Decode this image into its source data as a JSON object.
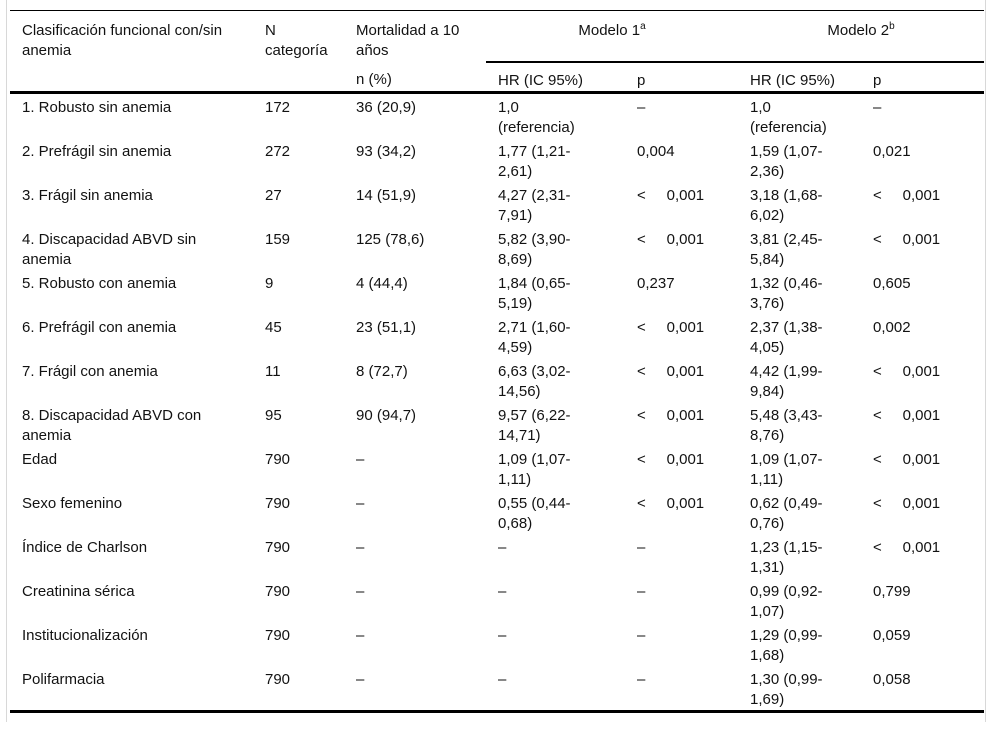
{
  "table": {
    "header": {
      "classification": "Clasificación funcional con/sin\nanemia",
      "n_category": "N\ncategoría",
      "mortality": "Mortalidad a 10\naños",
      "n_pct": "n (%)",
      "model1": {
        "label": "Modelo 1",
        "sup": "a"
      },
      "model2": {
        "label": "Modelo 2",
        "sup": "b"
      },
      "hr_label": "HR (IC 95%)",
      "p_label": "p"
    },
    "rows": [
      {
        "label": "1. Robusto sin anemia",
        "n": "172",
        "mortality": "36 (20,9)",
        "hr1": "1,0\n(referencia)",
        "p1": "–",
        "hr2": "1,0\n(referencia)",
        "p2": "–"
      },
      {
        "label": "2. Prefrágil sin anemia",
        "n": "272",
        "mortality": "93 (34,2)",
        "hr1": "1,77 (1,21-\n2,61)",
        "p1": "0,004",
        "hr2": "1,59 (1,07-\n2,36)",
        "p2": "0,021"
      },
      {
        "label": "3. Frágil sin anemia",
        "n": "27",
        "mortality": "14 (51,9)",
        "hr1": "4,27 (2,31-\n7,91)",
        "p1": "<     0,001",
        "hr2": "3,18 (1,68-\n6,02)",
        "p2": "<     0,001"
      },
      {
        "label": "4. Discapacidad ABVD sin\nanemia",
        "n": "159",
        "mortality": "125 (78,6)",
        "hr1": "5,82 (3,90-\n8,69)",
        "p1": "<     0,001",
        "hr2": "3,81 (2,45-\n5,84)",
        "p2": "<     0,001"
      },
      {
        "label": "5. Robusto con anemia",
        "n": "9",
        "mortality": "4 (44,4)",
        "hr1": "1,84 (0,65-\n5,19)",
        "p1": "0,237",
        "hr2": "1,32 (0,46-\n3,76)",
        "p2": "0,605"
      },
      {
        "label": "6. Prefrágil con anemia",
        "n": "45",
        "mortality": "23 (51,1)",
        "hr1": "2,71 (1,60-\n4,59)",
        "p1": "<     0,001",
        "hr2": "2,37 (1,38-\n4,05)",
        "p2": "0,002"
      },
      {
        "label": "7. Frágil con anemia",
        "n": "11",
        "mortality": "8 (72,7)",
        "hr1": "6,63 (3,02-\n14,56)",
        "p1": "<     0,001",
        "hr2": "4,42 (1,99-\n9,84)",
        "p2": "<     0,001"
      },
      {
        "label": "8. Discapacidad ABVD con\nanemia",
        "n": "95",
        "mortality": "90 (94,7)",
        "hr1": "9,57 (6,22-\n14,71)",
        "p1": "<     0,001",
        "hr2": "5,48 (3,43-\n8,76)",
        "p2": "<     0,001"
      },
      {
        "label": "Edad",
        "n": "790",
        "mortality": "–",
        "hr1": "1,09 (1,07-\n1,11)",
        "p1": "<     0,001",
        "hr2": "1,09 (1,07-\n1,11)",
        "p2": "<     0,001"
      },
      {
        "label": "Sexo femenino",
        "n": "790",
        "mortality": "–",
        "hr1": "0,55 (0,44-\n0,68)",
        "p1": "<     0,001",
        "hr2": "0,62 (0,49-\n0,76)",
        "p2": "<     0,001"
      },
      {
        "label": "Índice de Charlson",
        "n": "790",
        "mortality": "–",
        "hr1": "–",
        "p1": "–",
        "hr2": "1,23 (1,15-\n1,31)",
        "p2": "<     0,001"
      },
      {
        "label": "Creatinina sérica",
        "n": "790",
        "mortality": "–",
        "hr1": "–",
        "p1": "–",
        "hr2": "0,99 (0,92-\n1,07)",
        "p2": "0,799"
      },
      {
        "label": "Institucionalización",
        "n": "790",
        "mortality": "–",
        "hr1": "–",
        "p1": "–",
        "hr2": "1,29 (0,99-\n1,68)",
        "p2": "0,059"
      },
      {
        "label": "Polifarmacia",
        "n": "790",
        "mortality": "–",
        "hr1": "–",
        "p1": "–",
        "hr2": "1,30 (0,99-\n1,69)",
        "p2": "0,058"
      }
    ]
  }
}
